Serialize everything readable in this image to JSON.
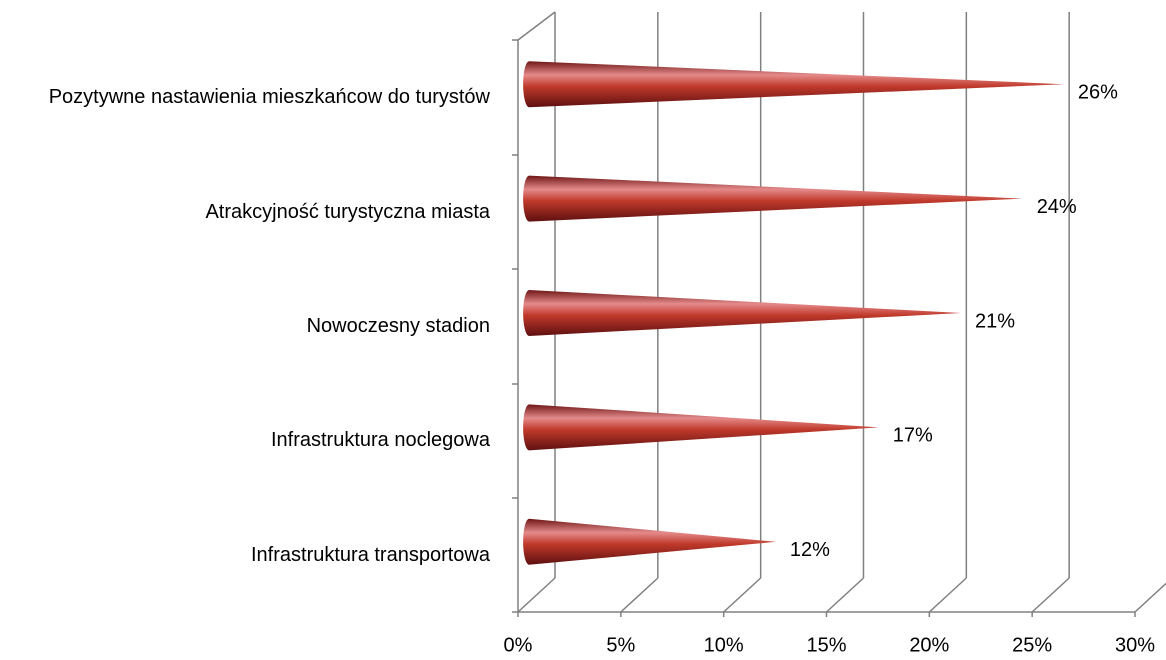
{
  "chart_data": {
    "type": "cone-bar",
    "categories": [
      "Pozytywne nastawienia mieszkańcow do turystów",
      "Atrakcyjność turystyczna miasta",
      "Nowoczesny stadion ",
      "Infrastruktura noclegowa",
      "Infrastruktura transportowa"
    ],
    "values": [
      26,
      24,
      21,
      17,
      12
    ],
    "value_labels": [
      "26%",
      "24%",
      "21%",
      "17%",
      "12%"
    ],
    "color": "#c0392b",
    "xlim": [
      0,
      30
    ],
    "xticks": [
      {
        "value": 0,
        "label": "0%"
      },
      {
        "value": 5,
        "label": "5%"
      },
      {
        "value": 10,
        "label": "10%"
      },
      {
        "value": 15,
        "label": "15%"
      },
      {
        "value": 20,
        "label": "20%"
      },
      {
        "value": 25,
        "label": "25%"
      },
      {
        "value": 30,
        "label": "30%"
      }
    ],
    "grid": true
  }
}
